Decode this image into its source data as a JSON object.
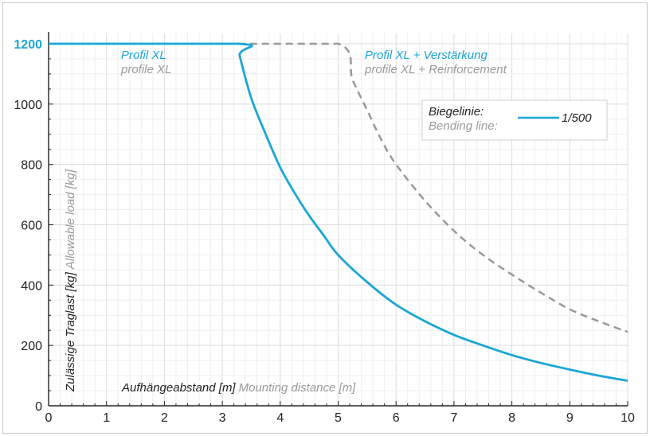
{
  "chart_data": {
    "type": "line",
    "xlim": [
      0,
      10
    ],
    "ylim": [
      0,
      1250
    ],
    "x_ticks": [
      "0",
      "1",
      "2",
      "3",
      "4",
      "5",
      "6",
      "7",
      "8",
      "9",
      "10"
    ],
    "y_ticks": [
      "0",
      "200",
      "400",
      "600",
      "800",
      "1000",
      "1200"
    ],
    "highlight_y_tick": "1200",
    "grid": true,
    "xlabel": {
      "primary": "Aufhängeabstand [m]",
      "secondary": "Mounting distance [m]"
    },
    "ylabel": {
      "primary": "Zulässige Traglast [kg]",
      "secondary": "Allowable load [kg]"
    },
    "series": [
      {
        "name": "Profil XL",
        "name_secondary": "profile XL",
        "color": "#1aa6d6",
        "style": "solid",
        "x": [
          0,
          3.27,
          3.3,
          3.5,
          3.75,
          4.0,
          4.25,
          4.5,
          4.75,
          5.0,
          5.5,
          6.0,
          6.5,
          7.0,
          7.5,
          8.0,
          8.5,
          9.0,
          9.5,
          10.0
        ],
        "y": [
          1200,
          1200,
          1160,
          1020,
          900,
          790,
          705,
          630,
          565,
          500,
          410,
          335,
          280,
          235,
          200,
          168,
          142,
          120,
          100,
          83
        ]
      },
      {
        "name": "Profil XL + Verstärkung",
        "name_secondary": "profile XL + Reinforcement",
        "color": "#999999",
        "style": "dashed",
        "x": [
          3.27,
          5.0,
          5.25,
          5.5,
          5.75,
          6.0,
          6.5,
          7.0,
          7.5,
          8.0,
          8.5,
          9.0,
          9.5,
          10.0
        ],
        "y": [
          1200,
          1200,
          1080,
          980,
          880,
          800,
          680,
          580,
          500,
          435,
          375,
          320,
          280,
          245
        ]
      }
    ],
    "legend": {
      "title": "Biegelinie:",
      "title_secondary": "Bending line:",
      "entry": "1/500",
      "color": "#1aa6d6",
      "position": "top-right"
    }
  }
}
